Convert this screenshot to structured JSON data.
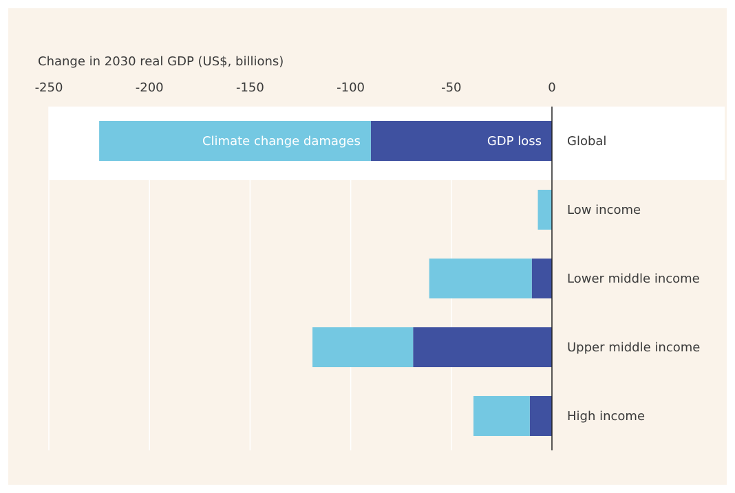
{
  "chart_data": {
    "type": "bar",
    "orientation": "horizontal",
    "stacked": true,
    "xlabel": "Change in 2030 real GDP (US$, billions)",
    "categories": [
      "Global",
      "Low income",
      "Lower middle income",
      "Upper middle income",
      "High income"
    ],
    "series": [
      {
        "name": "GDP loss",
        "color": "#3f51a0",
        "values": [
          -90,
          0,
          -10,
          -69,
          -11
        ]
      },
      {
        "name": "Climate change damages",
        "color": "#74c8e2",
        "values": [
          -135,
          -7,
          -51,
          -50,
          -28
        ]
      }
    ],
    "xlim": [
      -250,
      0
    ],
    "xticks": [
      -250,
      -200,
      -150,
      -100,
      -50,
      0
    ],
    "grid": true
  }
}
